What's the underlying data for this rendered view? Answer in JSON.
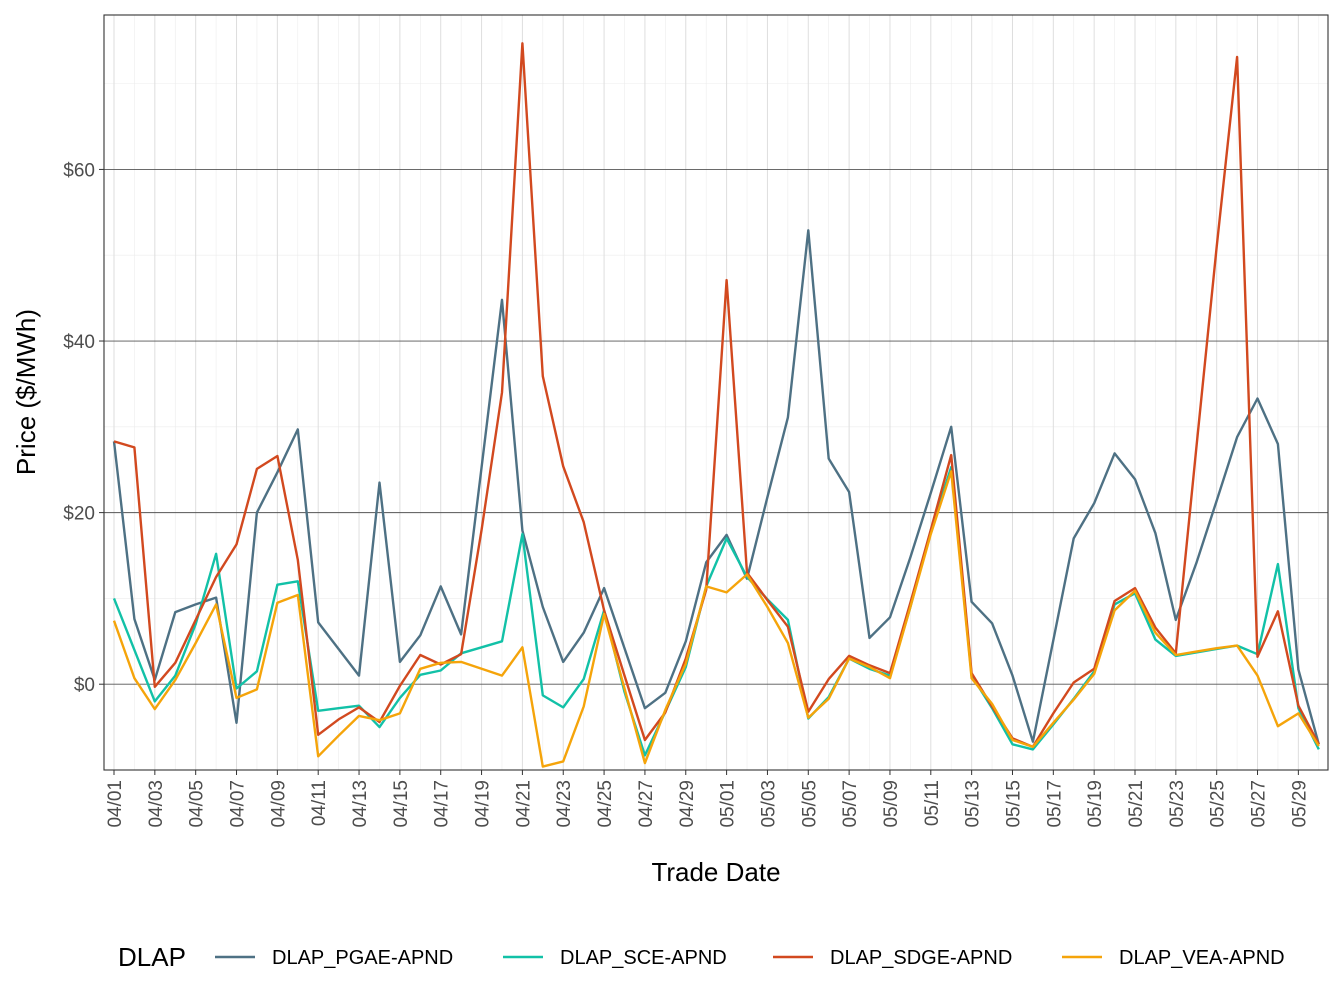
{
  "chart_data": {
    "type": "line",
    "xlabel": "Trade Date",
    "ylabel": "Price ($/MWh)",
    "ylim": [
      -10,
      78
    ],
    "y_ticks": [
      0,
      20,
      40,
      60
    ],
    "y_tick_labels": [
      "$0",
      "$20",
      "$40",
      "$60"
    ],
    "x_tick_labels": [
      "04/01",
      "04/03",
      "04/05",
      "04/07",
      "04/09",
      "04/11",
      "04/13",
      "04/15",
      "04/17",
      "04/19",
      "04/21",
      "04/23",
      "04/25",
      "04/27",
      "04/29",
      "05/01",
      "05/03",
      "05/05",
      "05/07",
      "05/09",
      "05/11",
      "05/13",
      "05/15",
      "05/17",
      "05/19",
      "05/21",
      "05/23",
      "05/25",
      "05/27",
      "05/29"
    ],
    "x": [
      "04/01",
      "04/02",
      "04/03",
      "04/04",
      "04/05",
      "04/06",
      "04/07",
      "04/08",
      "04/09",
      "04/10",
      "04/11",
      "04/12",
      "04/13",
      "04/14",
      "04/15",
      "04/16",
      "04/17",
      "04/18",
      "04/19",
      "04/20",
      "04/21",
      "04/22",
      "04/23",
      "04/24",
      "04/25",
      "04/26",
      "04/27",
      "04/28",
      "04/29",
      "04/30",
      "05/01",
      "05/02",
      "05/03",
      "05/04",
      "05/05",
      "05/06",
      "05/07",
      "05/08",
      "05/09",
      "05/10",
      "05/11",
      "05/12",
      "05/13",
      "05/14",
      "05/15",
      "05/16",
      "05/17",
      "05/18",
      "05/19",
      "05/20",
      "05/21",
      "05/22",
      "05/23",
      "05/24",
      "05/25",
      "05/26",
      "05/27",
      "05/28",
      "05/29",
      "05/30"
    ],
    "grid": true,
    "legend_position": "bottom",
    "legend_title": "DLAP",
    "series": [
      {
        "name": "DLAP_PGAE-APND",
        "color": "#4e7184",
        "values": [
          28.3,
          7.6,
          0.5,
          8.4,
          9.3,
          10.1,
          -4.5,
          20.0,
          24.7,
          29.7,
          7.2,
          4.1,
          1.0,
          23.5,
          2.6,
          5.7,
          11.4,
          5.8,
          25.3,
          44.8,
          17.9,
          9.0,
          2.6,
          6.0,
          11.2,
          4.2,
          -2.8,
          -1.0,
          5.0,
          14.2,
          17.4,
          12.3,
          21.8,
          31.1,
          52.9,
          26.3,
          22.4,
          5.4,
          7.8,
          14.8,
          22.3,
          30.0,
          9.6,
          7.1,
          1.0,
          -6.7,
          5.1,
          17.0,
          21.1,
          26.9,
          23.9,
          17.6,
          7.5,
          14.1,
          21.4,
          28.8,
          33.3,
          28.0,
          1.7,
          -7.0
        ]
      },
      {
        "name": "DLAP_SCE-APND",
        "color": "#12c1a7",
        "values": [
          10.0,
          4.0,
          -2.0,
          1.0,
          7.0,
          15.2,
          -0.5,
          1.5,
          11.6,
          12.0,
          -3.1,
          -2.8,
          -2.5,
          -5.0,
          -1.6,
          1.1,
          1.6,
          3.6,
          4.3,
          5.0,
          17.5,
          -1.3,
          -2.7,
          0.6,
          8.6,
          -0.9,
          -8.3,
          -3.2,
          2.0,
          11.4,
          17.0,
          12.5,
          9.9,
          7.5,
          -4.0,
          -1.5,
          3.0,
          1.8,
          1.0,
          9.0,
          17.9,
          25.3,
          1.0,
          -2.8,
          -7.0,
          -7.6,
          -4.7,
          -1.7,
          1.5,
          9.3,
          10.6,
          5.2,
          3.3,
          3.7,
          4.1,
          4.5,
          3.5,
          14.0,
          -2.8,
          -7.6
        ]
      },
      {
        "name": "DLAP_SDGE-APND",
        "color": "#d2491f",
        "values": [
          28.3,
          27.6,
          -0.3,
          2.5,
          7.5,
          12.5,
          16.3,
          25.1,
          26.6,
          14.5,
          -5.9,
          -4.1,
          -2.7,
          -4.4,
          -0.2,
          3.4,
          2.3,
          3.5,
          18.0,
          34.0,
          74.7,
          35.9,
          25.4,
          18.9,
          8.6,
          1.0,
          -6.5,
          -3.3,
          3.0,
          11.0,
          47.1,
          13.0,
          9.8,
          6.7,
          -3.2,
          0.6,
          3.3,
          2.2,
          1.3,
          9.5,
          18.0,
          26.7,
          1.3,
          -2.6,
          -6.3,
          -7.3,
          -3.4,
          0.2,
          1.8,
          9.7,
          11.2,
          6.6,
          3.6,
          27.5,
          51.0,
          73.1,
          3.2,
          8.5,
          -2.5,
          -7.0
        ]
      },
      {
        "name": "DLAP_VEA-APND",
        "color": "#f5a40a",
        "values": [
          7.4,
          0.7,
          -2.9,
          0.5,
          4.8,
          9.3,
          -1.6,
          -0.6,
          9.5,
          10.4,
          -8.4,
          -6.0,
          -3.7,
          -4.2,
          -3.4,
          1.8,
          2.5,
          2.6,
          1.8,
          1.0,
          4.3,
          -9.6,
          -9.0,
          -2.6,
          8.2,
          -0.5,
          -9.2,
          -3.0,
          2.4,
          11.4,
          10.7,
          12.8,
          9.0,
          4.8,
          -3.9,
          -1.7,
          3.0,
          2.0,
          0.7,
          9.0,
          17.5,
          24.8,
          0.7,
          -2.3,
          -6.5,
          -7.3,
          -4.5,
          -1.8,
          1.2,
          8.6,
          10.9,
          6.0,
          3.4,
          3.8,
          4.2,
          4.5,
          1.0,
          -4.9,
          -3.4,
          -7.2
        ]
      }
    ]
  }
}
